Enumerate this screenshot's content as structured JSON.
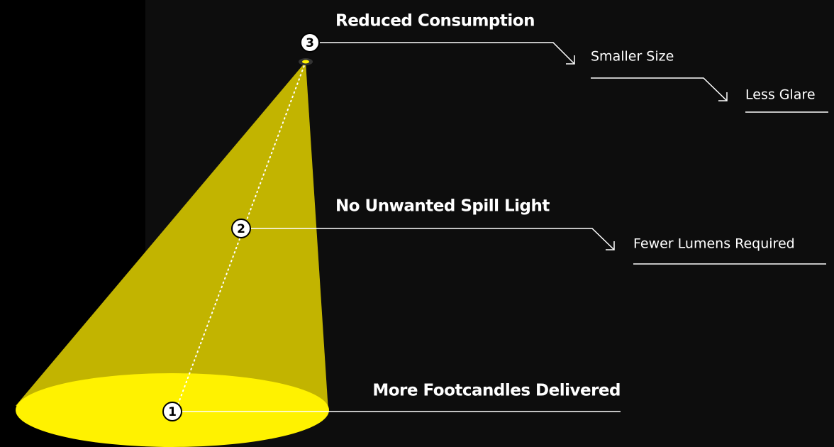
{
  "points": [
    {
      "number": "1",
      "label": "More Footcandles Delivered"
    },
    {
      "number": "2",
      "label": "No Unwanted Spill Light",
      "notes": [
        "Fewer Lumens Required"
      ]
    },
    {
      "number": "3",
      "label": "Reduced Consumption",
      "notes": [
        "Smaller Size",
        "Less Glare"
      ]
    }
  ]
}
